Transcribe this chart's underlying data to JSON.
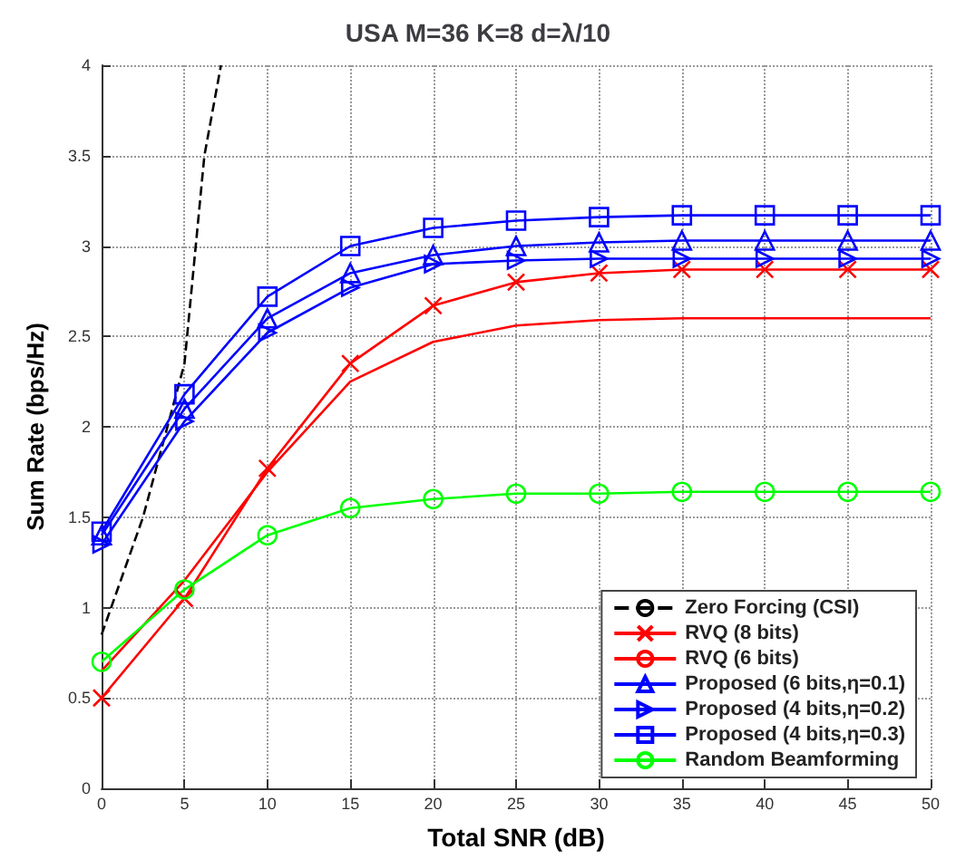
{
  "chart_data": {
    "type": "line",
    "title": "USA M=36 K=8 d=λ/10",
    "xlabel": "Total SNR (dB)",
    "ylabel": "Sum Rate (bps/Hz)",
    "x": [
      0,
      5,
      10,
      15,
      20,
      25,
      30,
      35,
      40,
      45,
      50
    ],
    "series": [
      {
        "name": "Zero Forcing (CSI)",
        "color": "#000000",
        "line_style": "dashed",
        "marker": "none",
        "x": [
          0,
          2.5,
          5,
          6.2,
          7.2
        ],
        "values": [
          0.85,
          1.5,
          2.35,
          3.5,
          4
        ]
      },
      {
        "name": "RVQ (8 bits)",
        "color": "#ff0000",
        "marker": "cross",
        "values": [
          0.5,
          1.05,
          1.77,
          2.35,
          2.67,
          2.8,
          2.85,
          2.87,
          2.87,
          2.87,
          2.87
        ]
      },
      {
        "name": "RVQ (6 bits)",
        "color": "#ff0000",
        "marker": "none",
        "values": [
          0.65,
          1.15,
          1.75,
          2.25,
          2.47,
          2.56,
          2.59,
          2.6,
          2.6,
          2.6,
          2.6
        ]
      },
      {
        "name": "Proposed (6 bits,η=0.1)",
        "color": "#0000ff",
        "marker": "triangle",
        "values": [
          1.4,
          2.1,
          2.6,
          2.85,
          2.95,
          3.0,
          3.02,
          3.03,
          3.03,
          3.03,
          3.03
        ]
      },
      {
        "name": "Proposed (4 bits,η=0.2)",
        "color": "#0000ff",
        "marker": "triangle-right",
        "values": [
          1.35,
          2.03,
          2.52,
          2.77,
          2.9,
          2.92,
          2.93,
          2.93,
          2.93,
          2.93,
          2.93
        ]
      },
      {
        "name": "Proposed (4 bits,η=0.3)",
        "color": "#0000ff",
        "marker": "square",
        "values": [
          1.42,
          2.18,
          2.72,
          3.0,
          3.1,
          3.14,
          3.16,
          3.17,
          3.17,
          3.17,
          3.17
        ]
      },
      {
        "name": "Random Beamforming",
        "color": "#00ff00",
        "marker": "circle",
        "values": [
          0.7,
          1.1,
          1.4,
          1.55,
          1.6,
          1.63,
          1.63,
          1.64,
          1.64,
          1.64,
          1.64
        ]
      }
    ],
    "xlim": [
      0,
      50
    ],
    "xticks": [
      0,
      5,
      10,
      15,
      20,
      25,
      30,
      35,
      40,
      45,
      50
    ],
    "ylim": [
      0,
      4
    ],
    "yticks": [
      0,
      0.5,
      1,
      1.5,
      2,
      2.5,
      3,
      3.5,
      4
    ],
    "grid": true,
    "legend": "bottom right",
    "line_style": "solid"
  }
}
